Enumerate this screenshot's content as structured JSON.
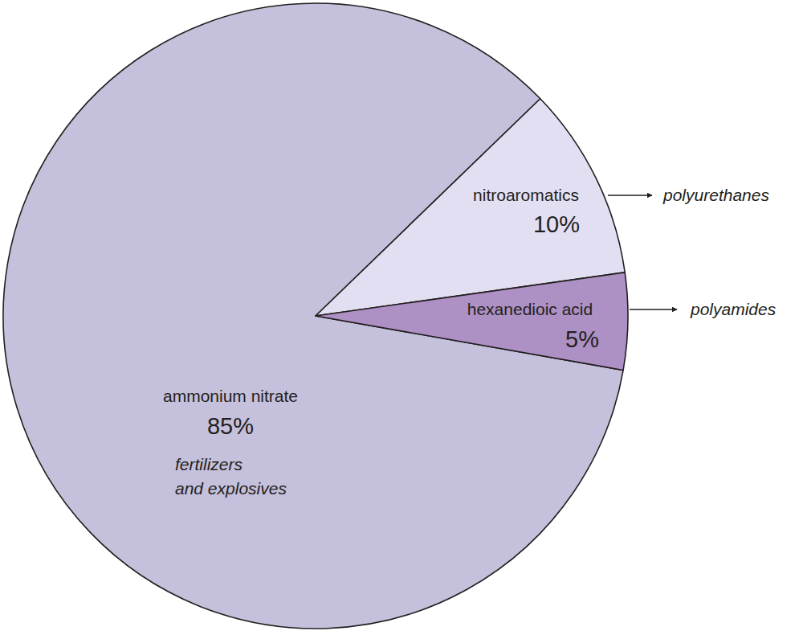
{
  "chart_data": {
    "type": "pie",
    "categories": [
      "ammonium nitrate",
      "nitroaromatics",
      "hexanedioic acid"
    ],
    "values": [
      85,
      10,
      5
    ],
    "value_labels": [
      "85%",
      "10%",
      "5%"
    ],
    "data_labels": true,
    "colors": [
      "#c5c0db",
      "#e3dff3",
      "#ad90c4"
    ],
    "annotations": [
      [
        "fertilizers",
        "and explosives"
      ],
      [
        "polyurethanes"
      ],
      [
        "polyamides"
      ]
    ]
  }
}
